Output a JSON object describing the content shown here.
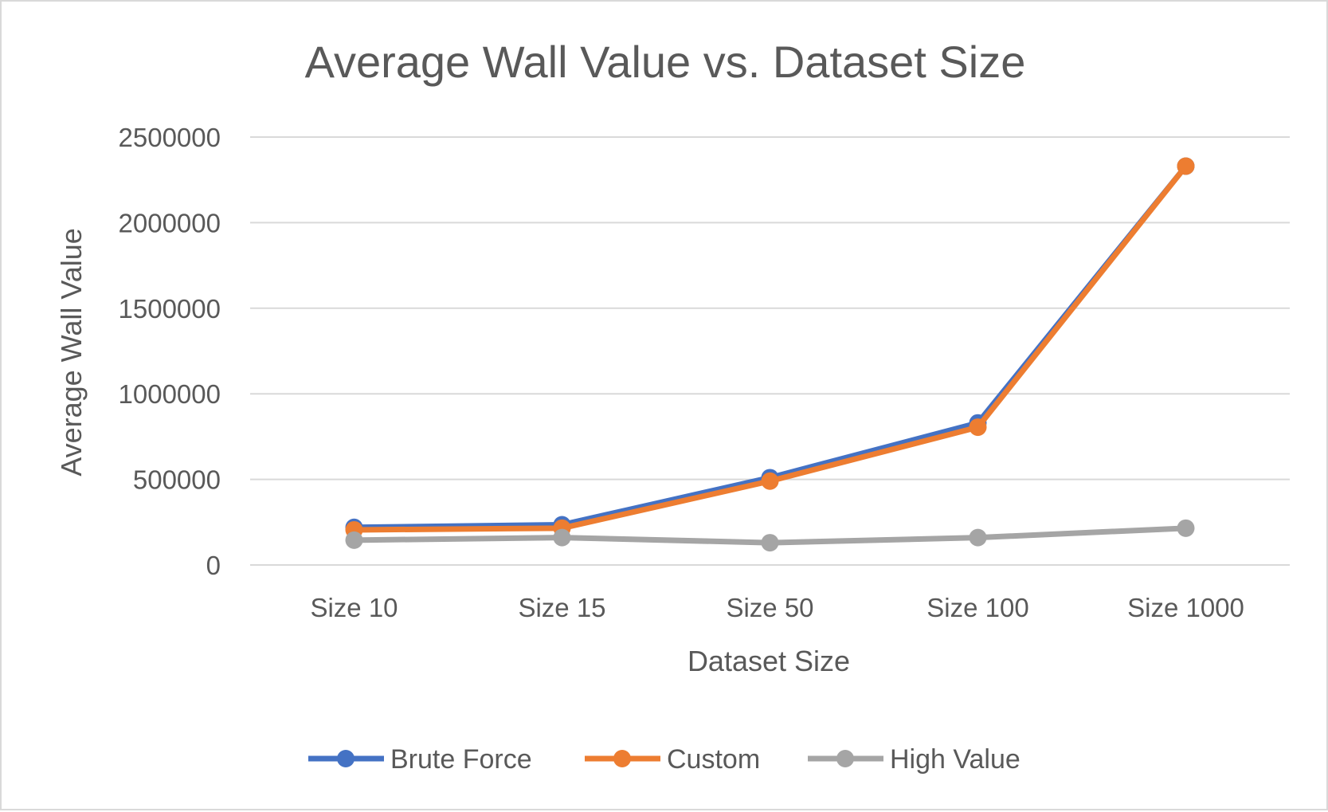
{
  "chart_data": {
    "type": "line",
    "title": "Average Wall Value vs. Dataset Size",
    "xlabel": "Dataset Size",
    "ylabel": "Average Wall Value",
    "categories": [
      "Size 10",
      "Size 15",
      "Size 50",
      "Size 100",
      "Size 1000"
    ],
    "ylim": [
      0,
      2500000
    ],
    "yticks": [
      "0",
      "500000",
      "1000000",
      "1500000",
      "2000000",
      "2500000"
    ],
    "grid": true,
    "legend_position": "bottom",
    "series": [
      {
        "name": "Brute Force",
        "color": "#4472c4",
        "values": [
          220000,
          235000,
          510000,
          830000,
          2330000
        ]
      },
      {
        "name": "Custom",
        "color": "#ed7d31",
        "values": [
          205000,
          215000,
          490000,
          805000,
          2330000
        ]
      },
      {
        "name": "High Value",
        "color": "#a5a5a5",
        "values": [
          145000,
          160000,
          130000,
          160000,
          215000
        ]
      }
    ]
  }
}
